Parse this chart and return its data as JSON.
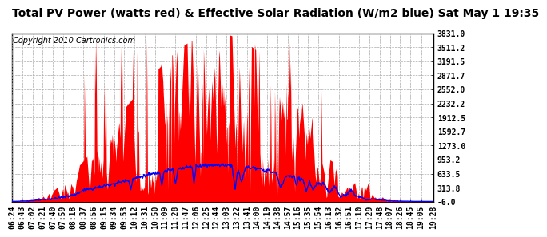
{
  "title": "Total PV Power (watts red) & Effective Solar Radiation (W/m2 blue) Sat May 1 19:35",
  "copyright": "Copyright 2010 Cartronics.com",
  "y_ticks": [
    3831.0,
    3511.2,
    3191.5,
    2871.7,
    2552.0,
    2232.2,
    1912.5,
    1592.7,
    1273.0,
    953.2,
    633.5,
    313.8,
    -6.0
  ],
  "x_labels": [
    "06:24",
    "06:43",
    "07:02",
    "07:21",
    "07:40",
    "07:59",
    "08:18",
    "08:37",
    "08:56",
    "09:15",
    "09:34",
    "09:53",
    "10:12",
    "10:31",
    "10:50",
    "11:09",
    "11:28",
    "11:47",
    "12:06",
    "12:25",
    "12:44",
    "13:03",
    "13:22",
    "13:41",
    "14:00",
    "14:19",
    "14:38",
    "14:57",
    "15:16",
    "15:35",
    "15:54",
    "16:13",
    "16:32",
    "16:51",
    "17:10",
    "17:29",
    "17:48",
    "18:07",
    "18:26",
    "18:45",
    "19:05",
    "19:28"
  ],
  "ymin": -6.0,
  "ymax": 3831.0,
  "background_color": "#ffffff",
  "plot_bg_color": "#ffffff",
  "red_color": "#ff0000",
  "blue_color": "#0000ff",
  "title_fontsize": 10,
  "copyright_fontsize": 7,
  "tick_fontsize": 7,
  "grid_color": "#aaaaaa"
}
